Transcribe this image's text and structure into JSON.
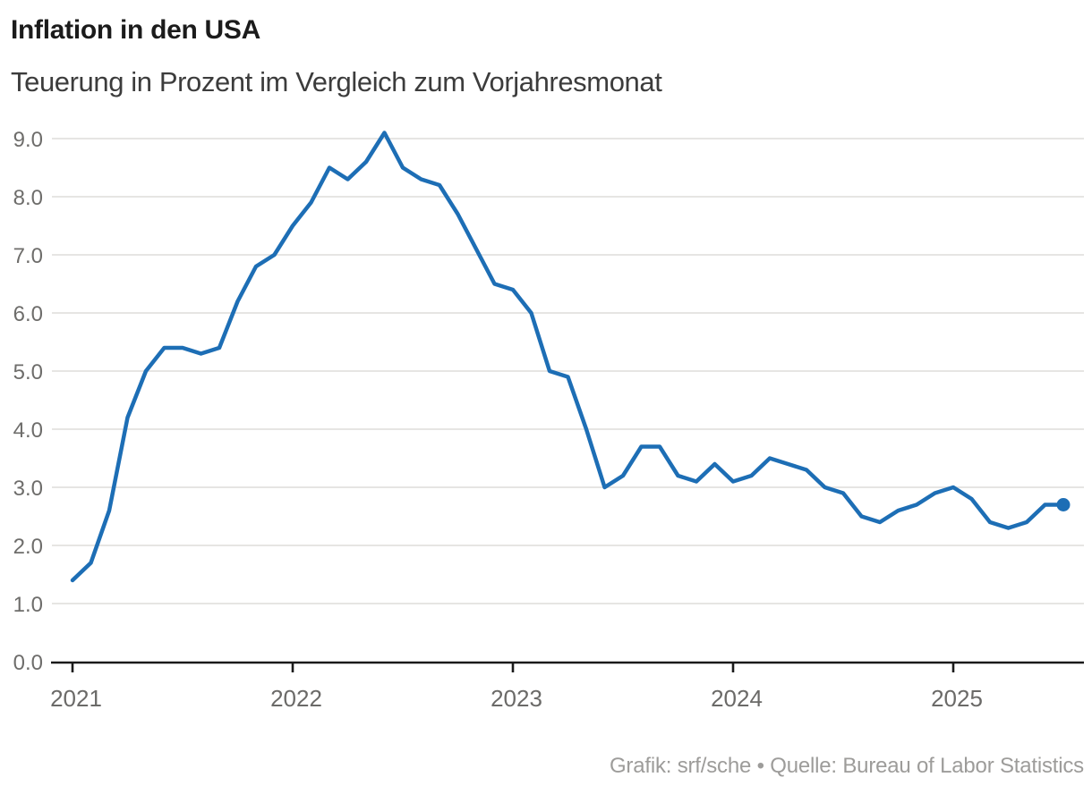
{
  "header": {
    "title": "Inflation in den USA",
    "subtitle": "Teuerung in Prozent im Vergleich zum Vorjahresmonat"
  },
  "footer": {
    "credit": "Grafik: srf/sche • Quelle: Bureau of Labor Statistics"
  },
  "chart_data": {
    "type": "line",
    "title": "Inflation in den USA",
    "subtitle": "Teuerung in Prozent im Vergleich zum Vorjahresmonat",
    "unit": "Prozent",
    "x": [
      "2021-01",
      "2021-02",
      "2021-03",
      "2021-04",
      "2021-05",
      "2021-06",
      "2021-07",
      "2021-08",
      "2021-09",
      "2021-10",
      "2021-11",
      "2021-12",
      "2022-01",
      "2022-02",
      "2022-03",
      "2022-04",
      "2022-05",
      "2022-06",
      "2022-07",
      "2022-08",
      "2022-09",
      "2022-10",
      "2022-11",
      "2022-12",
      "2023-01",
      "2023-02",
      "2023-03",
      "2023-04",
      "2023-05",
      "2023-06",
      "2023-07",
      "2023-08",
      "2023-09",
      "2023-10",
      "2023-11",
      "2023-12",
      "2024-01",
      "2024-02",
      "2024-03",
      "2024-04",
      "2024-05",
      "2024-06",
      "2024-07",
      "2024-08",
      "2024-09",
      "2024-10",
      "2024-11",
      "2024-12",
      "2025-01",
      "2025-02",
      "2025-03",
      "2025-04",
      "2025-05",
      "2025-06",
      "2025-07"
    ],
    "values": [
      1.4,
      1.7,
      2.6,
      4.2,
      5.0,
      5.4,
      5.4,
      5.3,
      5.4,
      6.2,
      6.8,
      7.0,
      7.5,
      7.9,
      8.5,
      8.3,
      8.6,
      9.1,
      8.5,
      8.3,
      8.2,
      7.7,
      7.1,
      6.5,
      6.4,
      6.0,
      5.0,
      4.9,
      4.0,
      3.0,
      3.2,
      3.7,
      3.7,
      3.2,
      3.1,
      3.4,
      3.1,
      3.2,
      3.5,
      3.4,
      3.3,
      3.0,
      2.9,
      2.5,
      2.4,
      2.6,
      2.7,
      2.9,
      3.0,
      2.8,
      2.4,
      2.3,
      2.4,
      2.7,
      2.7
    ],
    "last_value": 2.7,
    "yticks": {
      "values": [
        0,
        1,
        2,
        3,
        4,
        5,
        6,
        7,
        8,
        9
      ],
      "labels": [
        "0.0",
        "1.0",
        "2.0",
        "3.0",
        "4.0",
        "5.0",
        "6.0",
        "7.0",
        "8.0",
        "9.0"
      ]
    },
    "xticks": {
      "labels": [
        "2021",
        "2022",
        "2023",
        "2024",
        "2025"
      ],
      "month_index": [
        0,
        12,
        24,
        36,
        48
      ]
    },
    "ylim": [
      0,
      9.1
    ],
    "grid": "horizontal",
    "legend": "none",
    "colors": {
      "line": "#1d6eb5",
      "end_marker": "#1d6eb5",
      "gridline": "#e6e5e3",
      "axis": "#1a1a1a",
      "tick_label": "#6e6d6b"
    }
  }
}
